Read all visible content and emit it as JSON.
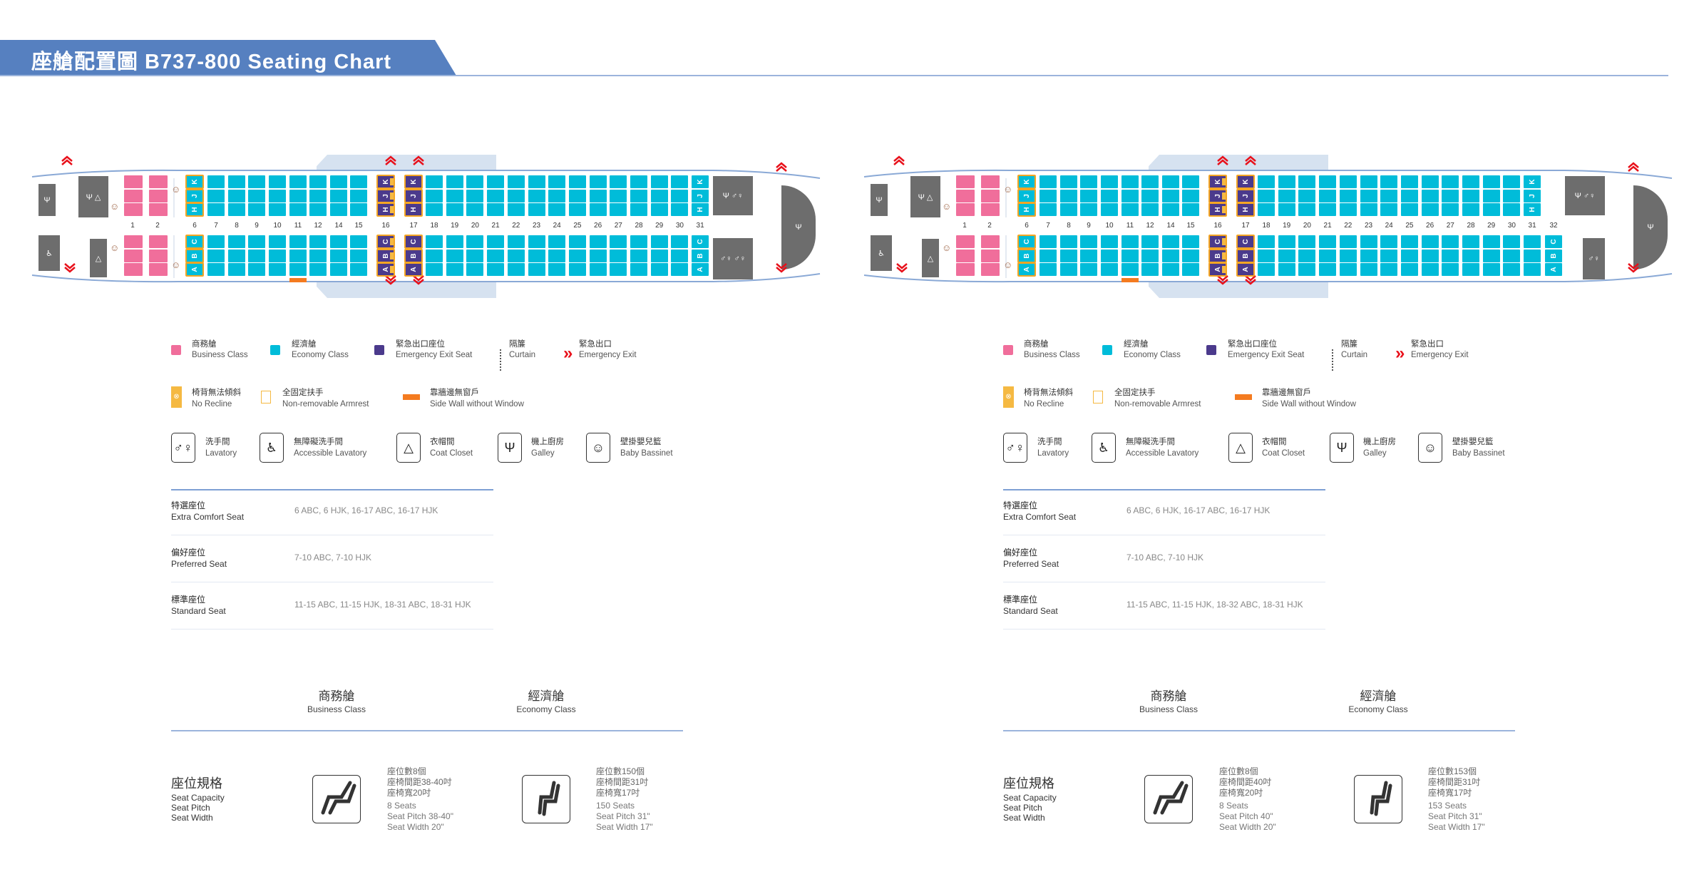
{
  "title": "座艙配置圖 B737-800 Seating Chart",
  "colors": {
    "business": "#f06e9b",
    "economy": "#00bcd9",
    "exit_seat": "#4b3a8c",
    "armrest": "#f5a623",
    "side_wall": "#f47b20",
    "exit_arrow": "#e8101a",
    "facility": "#6d6d6d",
    "title_bar": "#5680c0"
  },
  "panels": [
    {
      "rows": [
        {
          "n": "1",
          "cls": "business"
        },
        {
          "n": "2",
          "cls": "business"
        },
        {
          "n": "6",
          "cls": "economy",
          "arm": true,
          "letters": "both"
        },
        {
          "n": "7",
          "cls": "economy"
        },
        {
          "n": "8",
          "cls": "economy"
        },
        {
          "n": "9",
          "cls": "economy"
        },
        {
          "n": "10",
          "cls": "economy"
        },
        {
          "n": "11",
          "cls": "economy",
          "side_wall": true
        },
        {
          "n": "12",
          "cls": "economy"
        },
        {
          "n": "14",
          "cls": "economy"
        },
        {
          "n": "15",
          "cls": "economy"
        },
        {
          "n": "16",
          "cls": "exit",
          "arm": true,
          "letters": "both",
          "no_recline": true
        },
        {
          "n": "17",
          "cls": "exit",
          "arm": true,
          "letters": "both"
        },
        {
          "n": "18",
          "cls": "economy"
        },
        {
          "n": "19",
          "cls": "economy"
        },
        {
          "n": "20",
          "cls": "economy"
        },
        {
          "n": "21",
          "cls": "economy"
        },
        {
          "n": "22",
          "cls": "economy"
        },
        {
          "n": "23",
          "cls": "economy"
        },
        {
          "n": "24",
          "cls": "economy"
        },
        {
          "n": "25",
          "cls": "economy"
        },
        {
          "n": "26",
          "cls": "economy"
        },
        {
          "n": "27",
          "cls": "economy"
        },
        {
          "n": "28",
          "cls": "economy"
        },
        {
          "n": "29",
          "cls": "economy"
        },
        {
          "n": "30",
          "cls": "economy"
        },
        {
          "n": "31",
          "cls": "economy",
          "letters": "both"
        }
      ],
      "seat_table": [
        {
          "cn": "特選座位",
          "en": "Extra Comfort Seat",
          "value": "6 ABC, 6 HJK, 16-17 ABC, 16-17 HJK"
        },
        {
          "cn": "偏好座位",
          "en": "Preferred Seat",
          "value": "7-10 ABC, 7-10 HJK"
        },
        {
          "cn": "標準座位",
          "en": "Standard Seat",
          "value": "11-15 ABC, 11-15 HJK, 18-31 ABC, 18-31 HJK"
        }
      ],
      "business_spec": [
        "座位數8個",
        "座椅間距38-40吋",
        "座椅寬20吋",
        "8 Seats",
        "Seat Pitch 38-40\"",
        "Seat Width 20\""
      ],
      "economy_spec": [
        "座位數150個",
        "座椅間距31吋",
        "座椅寬17吋",
        "150 Seats",
        "Seat Pitch 31\"",
        "Seat Width 17\""
      ]
    },
    {
      "rows": [
        {
          "n": "1",
          "cls": "business"
        },
        {
          "n": "2",
          "cls": "business"
        },
        {
          "n": "6",
          "cls": "economy",
          "arm": true,
          "letters": "both"
        },
        {
          "n": "7",
          "cls": "economy"
        },
        {
          "n": "8",
          "cls": "economy"
        },
        {
          "n": "9",
          "cls": "economy"
        },
        {
          "n": "10",
          "cls": "economy"
        },
        {
          "n": "11",
          "cls": "economy",
          "side_wall": true
        },
        {
          "n": "12",
          "cls": "economy"
        },
        {
          "n": "14",
          "cls": "economy"
        },
        {
          "n": "15",
          "cls": "economy"
        },
        {
          "n": "16",
          "cls": "exit",
          "arm": true,
          "letters": "both",
          "no_recline": true
        },
        {
          "n": "17",
          "cls": "exit",
          "arm": true,
          "letters": "both"
        },
        {
          "n": "18",
          "cls": "economy"
        },
        {
          "n": "19",
          "cls": "economy"
        },
        {
          "n": "20",
          "cls": "economy"
        },
        {
          "n": "21",
          "cls": "economy"
        },
        {
          "n": "22",
          "cls": "economy"
        },
        {
          "n": "23",
          "cls": "economy"
        },
        {
          "n": "24",
          "cls": "economy"
        },
        {
          "n": "25",
          "cls": "economy"
        },
        {
          "n": "26",
          "cls": "economy"
        },
        {
          "n": "27",
          "cls": "economy"
        },
        {
          "n": "28",
          "cls": "economy"
        },
        {
          "n": "29",
          "cls": "economy"
        },
        {
          "n": "30",
          "cls": "economy"
        },
        {
          "n": "31",
          "cls": "economy",
          "letters": "upper"
        },
        {
          "n": "32",
          "cls": "economy",
          "letters": "lower",
          "lower_only": true
        }
      ],
      "seat_table": [
        {
          "cn": "特選座位",
          "en": "Extra Comfort Seat",
          "value": "6 ABC, 6 HJK, 16-17 ABC, 16-17 HJK"
        },
        {
          "cn": "偏好座位",
          "en": "Preferred Seat",
          "value": "7-10 ABC, 7-10 HJK"
        },
        {
          "cn": "標準座位",
          "en": "Standard Seat",
          "value": "11-15 ABC, 11-15 HJK, 18-32 ABC, 18-31 HJK"
        }
      ],
      "business_spec": [
        "座位數8個",
        "座椅間距40吋",
        "座椅寬20吋",
        "8 Seats",
        "Seat Pitch 40\"",
        "Seat Width 20\""
      ],
      "economy_spec": [
        "座位數153個",
        "座椅間距31吋",
        "座椅寬17吋",
        "153 Seats",
        "Seat Pitch 31\"",
        "Seat Width 17\""
      ]
    }
  ],
  "seat_letters": {
    "upper": [
      "K",
      "J",
      "H"
    ],
    "lower": [
      "C",
      "B",
      "A"
    ]
  },
  "legend": {
    "row1": [
      {
        "key": "business",
        "cn": "商務艙",
        "en": "Business Class"
      },
      {
        "key": "economy",
        "cn": "經濟艙",
        "en": "Economy Class"
      },
      {
        "key": "exit_seat",
        "cn": "緊急出口座位",
        "en": "Emergency Exit Seat"
      },
      {
        "key": "curtain",
        "cn": "隔簾",
        "en": "Curtain"
      },
      {
        "key": "exit",
        "cn": "緊急出口",
        "en": "Emergency Exit"
      }
    ],
    "row2": [
      {
        "key": "no_recline",
        "cn": "椅背無法傾斜",
        "en": "No Recline"
      },
      {
        "key": "armrest",
        "cn": "全固定扶手",
        "en": "Non-removable Armrest"
      },
      {
        "key": "side_wall",
        "cn": "靠牆邊無窗戶",
        "en": "Side Wall without Window"
      }
    ],
    "row3": [
      {
        "icon": "lavatory-icon",
        "cn": "洗手間",
        "en": "Lavatory"
      },
      {
        "icon": "accessible-lavatory-icon",
        "cn": "無障礙洗手間",
        "en": "Accessible Lavatory"
      },
      {
        "icon": "coat-closet-icon",
        "cn": "衣帽間",
        "en": "Coat Closet"
      },
      {
        "icon": "galley-icon",
        "cn": "機上廚房",
        "en": "Galley"
      },
      {
        "icon": "baby-bassinet-icon",
        "cn": "壁掛嬰兒籃",
        "en": "Baby Bassinet"
      }
    ]
  },
  "class_headers": {
    "business": {
      "cn": "商務艙",
      "en": "Business Class"
    },
    "economy": {
      "cn": "經濟艙",
      "en": "Economy Class"
    }
  },
  "spec_label": {
    "cn": "座位規格",
    "en1": "Seat Capacity",
    "en2": "Seat Pitch",
    "en3": "Seat Width"
  }
}
